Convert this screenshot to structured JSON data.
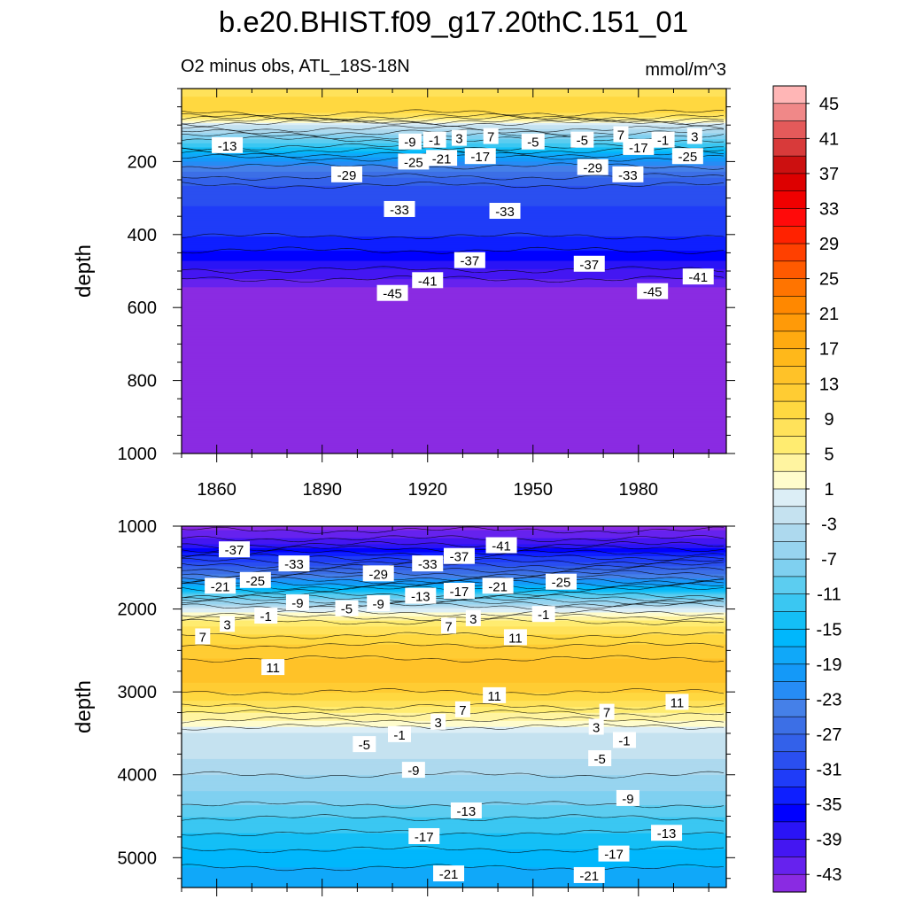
{
  "title": "b.e20.BHIST.f09_g17.20thC.151_01",
  "subtitle": "O2 minus obs, ATL_18S-18N",
  "units": "mmol/m^3",
  "chart_data": [
    {
      "type": "heatmap",
      "panel": "upper",
      "ylabel": "depth",
      "xlabel": "",
      "xlim": [
        1850,
        2005
      ],
      "ylim": [
        1000,
        0
      ],
      "x_ticks": [
        1860,
        1890,
        1920,
        1950,
        1980
      ],
      "y_ticks": [
        200,
        400,
        600,
        800,
        1000
      ],
      "contour_depth_profile": [
        [
          0,
          5
        ],
        [
          25,
          7
        ],
        [
          50,
          9
        ],
        [
          75,
          6
        ],
        [
          100,
          -3
        ],
        [
          125,
          -8
        ],
        [
          150,
          -13
        ],
        [
          175,
          -18
        ],
        [
          200,
          -23
        ],
        [
          225,
          -27
        ],
        [
          250,
          -30
        ],
        [
          280,
          -32
        ],
        [
          320,
          -33
        ],
        [
          380,
          -34
        ],
        [
          430,
          -36
        ],
        [
          470,
          -39
        ],
        [
          510,
          -42
        ],
        [
          545,
          -45
        ],
        [
          600,
          -47
        ],
        [
          1000,
          -47
        ]
      ],
      "contour_labels": [
        {
          "x": 1863,
          "depth": 155,
          "value": "-13"
        },
        {
          "x": 1915,
          "depth": 145,
          "value": "-9"
        },
        {
          "x": 1922,
          "depth": 140,
          "value": "-1"
        },
        {
          "x": 1929,
          "depth": 135,
          "value": "3"
        },
        {
          "x": 1938,
          "depth": 130,
          "value": "7"
        },
        {
          "x": 1950,
          "depth": 145,
          "value": "-5"
        },
        {
          "x": 1964,
          "depth": 140,
          "value": "-5"
        },
        {
          "x": 1975,
          "depth": 125,
          "value": "7"
        },
        {
          "x": 1987,
          "depth": 140,
          "value": "-1"
        },
        {
          "x": 1996,
          "depth": 130,
          "value": "3"
        },
        {
          "x": 1980,
          "depth": 160,
          "value": "-17"
        },
        {
          "x": 1935,
          "depth": 185,
          "value": "-17"
        },
        {
          "x": 1924,
          "depth": 190,
          "value": "-21"
        },
        {
          "x": 1916,
          "depth": 200,
          "value": "-25"
        },
        {
          "x": 1994,
          "depth": 185,
          "value": "-25"
        },
        {
          "x": 1897,
          "depth": 235,
          "value": "-29"
        },
        {
          "x": 1967,
          "depth": 215,
          "value": "-29"
        },
        {
          "x": 1977,
          "depth": 235,
          "value": "-33"
        },
        {
          "x": 1912,
          "depth": 330,
          "value": "-33"
        },
        {
          "x": 1942,
          "depth": 335,
          "value": "-33"
        },
        {
          "x": 1932,
          "depth": 470,
          "value": "-37"
        },
        {
          "x": 1966,
          "depth": 480,
          "value": "-37"
        },
        {
          "x": 1920,
          "depth": 525,
          "value": "-41"
        },
        {
          "x": 1997,
          "depth": 515,
          "value": "-41"
        },
        {
          "x": 1910,
          "depth": 560,
          "value": "-45"
        },
        {
          "x": 1984,
          "depth": 555,
          "value": "-45"
        }
      ]
    },
    {
      "type": "heatmap",
      "panel": "lower",
      "ylabel": "depth",
      "xlabel": "",
      "xlim": [
        1850,
        2005
      ],
      "ylim": [
        5360,
        1000
      ],
      "x_ticks": [
        1860,
        1890,
        1920,
        1950,
        1980
      ],
      "y_ticks": [
        1000,
        2000,
        3000,
        4000,
        5000
      ],
      "contour_depth_profile": [
        [
          1000,
          -46
        ],
        [
          1200,
          -42
        ],
        [
          1400,
          -34
        ],
        [
          1600,
          -26
        ],
        [
          1800,
          -15
        ],
        [
          2000,
          -3
        ],
        [
          2200,
          5
        ],
        [
          2500,
          10
        ],
        [
          2700,
          12
        ],
        [
          2900,
          11
        ],
        [
          3100,
          7
        ],
        [
          3300,
          2
        ],
        [
          3500,
          -3
        ],
        [
          3800,
          -5
        ],
        [
          4200,
          -9
        ],
        [
          4600,
          -14
        ],
        [
          5000,
          -18
        ],
        [
          5360,
          -21
        ]
      ],
      "contour_labels": [
        {
          "x": 1865,
          "depth": 1280,
          "value": "-37"
        },
        {
          "x": 1882,
          "depth": 1450,
          "value": "-33"
        },
        {
          "x": 1920,
          "depth": 1450,
          "value": "-33"
        },
        {
          "x": 1929,
          "depth": 1360,
          "value": "-37"
        },
        {
          "x": 1941,
          "depth": 1230,
          "value": "-41"
        },
        {
          "x": 1906,
          "depth": 1570,
          "value": "-29"
        },
        {
          "x": 1871,
          "depth": 1650,
          "value": "-25"
        },
        {
          "x": 1958,
          "depth": 1670,
          "value": "-25"
        },
        {
          "x": 1861,
          "depth": 1720,
          "value": "-21"
        },
        {
          "x": 1940,
          "depth": 1720,
          "value": "-21"
        },
        {
          "x": 1929,
          "depth": 1780,
          "value": "-17"
        },
        {
          "x": 1918,
          "depth": 1840,
          "value": "-13"
        },
        {
          "x": 1883,
          "depth": 1920,
          "value": "-9"
        },
        {
          "x": 1906,
          "depth": 1930,
          "value": "-9"
        },
        {
          "x": 1897,
          "depth": 1990,
          "value": "-5"
        },
        {
          "x": 1874,
          "depth": 2080,
          "value": "-1"
        },
        {
          "x": 1953,
          "depth": 2060,
          "value": "-1"
        },
        {
          "x": 1863,
          "depth": 2180,
          "value": "3"
        },
        {
          "x": 1933,
          "depth": 2110,
          "value": "3"
        },
        {
          "x": 1856,
          "depth": 2330,
          "value": "7"
        },
        {
          "x": 1926,
          "depth": 2200,
          "value": "7"
        },
        {
          "x": 1945,
          "depth": 2340,
          "value": "11"
        },
        {
          "x": 1876,
          "depth": 2700,
          "value": "11"
        },
        {
          "x": 1939,
          "depth": 3040,
          "value": "11"
        },
        {
          "x": 1991,
          "depth": 3120,
          "value": "11"
        },
        {
          "x": 1930,
          "depth": 3210,
          "value": "7"
        },
        {
          "x": 1971,
          "depth": 3240,
          "value": "7"
        },
        {
          "x": 1923,
          "depth": 3360,
          "value": "3"
        },
        {
          "x": 1968,
          "depth": 3420,
          "value": "3"
        },
        {
          "x": 1912,
          "depth": 3510,
          "value": "-1"
        },
        {
          "x": 1976,
          "depth": 3580,
          "value": "-1"
        },
        {
          "x": 1902,
          "depth": 3630,
          "value": "-5"
        },
        {
          "x": 1969,
          "depth": 3800,
          "value": "-5"
        },
        {
          "x": 1916,
          "depth": 3940,
          "value": "-9"
        },
        {
          "x": 1977,
          "depth": 4280,
          "value": "-9"
        },
        {
          "x": 1931,
          "depth": 4430,
          "value": "-13"
        },
        {
          "x": 1988,
          "depth": 4700,
          "value": "-13"
        },
        {
          "x": 1919,
          "depth": 4740,
          "value": "-17"
        },
        {
          "x": 1973,
          "depth": 4950,
          "value": "-17"
        },
        {
          "x": 1926,
          "depth": 5190,
          "value": "-21"
        },
        {
          "x": 1966,
          "depth": 5210,
          "value": "-21"
        }
      ]
    }
  ],
  "colorbar": {
    "levels": [
      -45,
      -43,
      -41,
      -39,
      -37,
      -35,
      -33,
      -31,
      -29,
      -27,
      -25,
      -23,
      -21,
      -19,
      -17,
      -15,
      -13,
      -11,
      -9,
      -7,
      -5,
      -3,
      -1,
      1,
      3,
      5,
      7,
      9,
      11,
      13,
      15,
      17,
      19,
      21,
      23,
      25,
      27,
      29,
      31,
      33,
      35,
      37,
      39,
      41,
      43,
      45
    ],
    "tick_labels": [
      "45",
      "41",
      "37",
      "33",
      "29",
      "25",
      "21",
      "17",
      "13",
      "9",
      "5",
      "1",
      "-3",
      "-7",
      "-11",
      "-15",
      "-19",
      "-23",
      "-27",
      "-31",
      "-35",
      "-39",
      "-43"
    ],
    "colors": [
      "#8a2be2",
      "#6622ee",
      "#4416f2",
      "#2a14f6",
      "#0000ff",
      "#0e1fff",
      "#1f3cf8",
      "#2a4ff0",
      "#3361ea",
      "#3c6fe6",
      "#4580e8",
      "#268cf5",
      "#1499f8",
      "#10a8f9",
      "#00b7fc",
      "#14bff6",
      "#3ac7f2",
      "#5ccdf0",
      "#7fd0f0",
      "#97d4ef",
      "#add9ee",
      "#c5e2f0",
      "#dceef6",
      "#fffccc",
      "#fff4a0",
      "#ffec70",
      "#ffe25a",
      "#ffd840",
      "#ffcc33",
      "#ffc228",
      "#ffb81a",
      "#ffaa10",
      "#ff9a08",
      "#ff8800",
      "#ff7400",
      "#ff5a00",
      "#ff4000",
      "#ff2200",
      "#ff0a0a",
      "#f00000",
      "#dd0000",
      "#cc1010",
      "#d83a3a",
      "#e45a5a",
      "#f08888",
      "#ffb6b6"
    ]
  }
}
